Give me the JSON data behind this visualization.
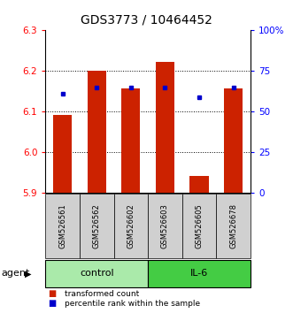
{
  "title": "GDS3773 / 10464452",
  "samples": [
    "GSM526561",
    "GSM526562",
    "GSM526602",
    "GSM526603",
    "GSM526605",
    "GSM526678"
  ],
  "red_values": [
    6.09,
    6.2,
    6.155,
    6.22,
    5.94,
    6.155
  ],
  "blue_values": [
    6.143,
    6.157,
    6.157,
    6.157,
    6.135,
    6.158
  ],
  "ylim_left": [
    5.9,
    6.3
  ],
  "yticks_left": [
    5.9,
    6.0,
    6.1,
    6.2,
    6.3
  ],
  "yticks_right": [
    0,
    25,
    50,
    75,
    100
  ],
  "ytick_labels_right": [
    "0",
    "25",
    "50",
    "75",
    "100%"
  ],
  "groups": [
    {
      "label": "control",
      "samples_idx": [
        0,
        1,
        2
      ],
      "color": "#aaeaaa"
    },
    {
      "label": "IL-6",
      "samples_idx": [
        3,
        4,
        5
      ],
      "color": "#44cc44"
    }
  ],
  "bar_color": "#cc2200",
  "blue_color": "#0000cc",
  "bar_bottom": 5.9,
  "bar_width": 0.55,
  "legend_red_label": "transformed count",
  "legend_blue_label": "percentile rank within the sample",
  "title_fontsize": 10,
  "tick_fontsize": 7.5,
  "sample_fontsize": 6,
  "group_fontsize": 8,
  "legend_fontsize": 6.5
}
